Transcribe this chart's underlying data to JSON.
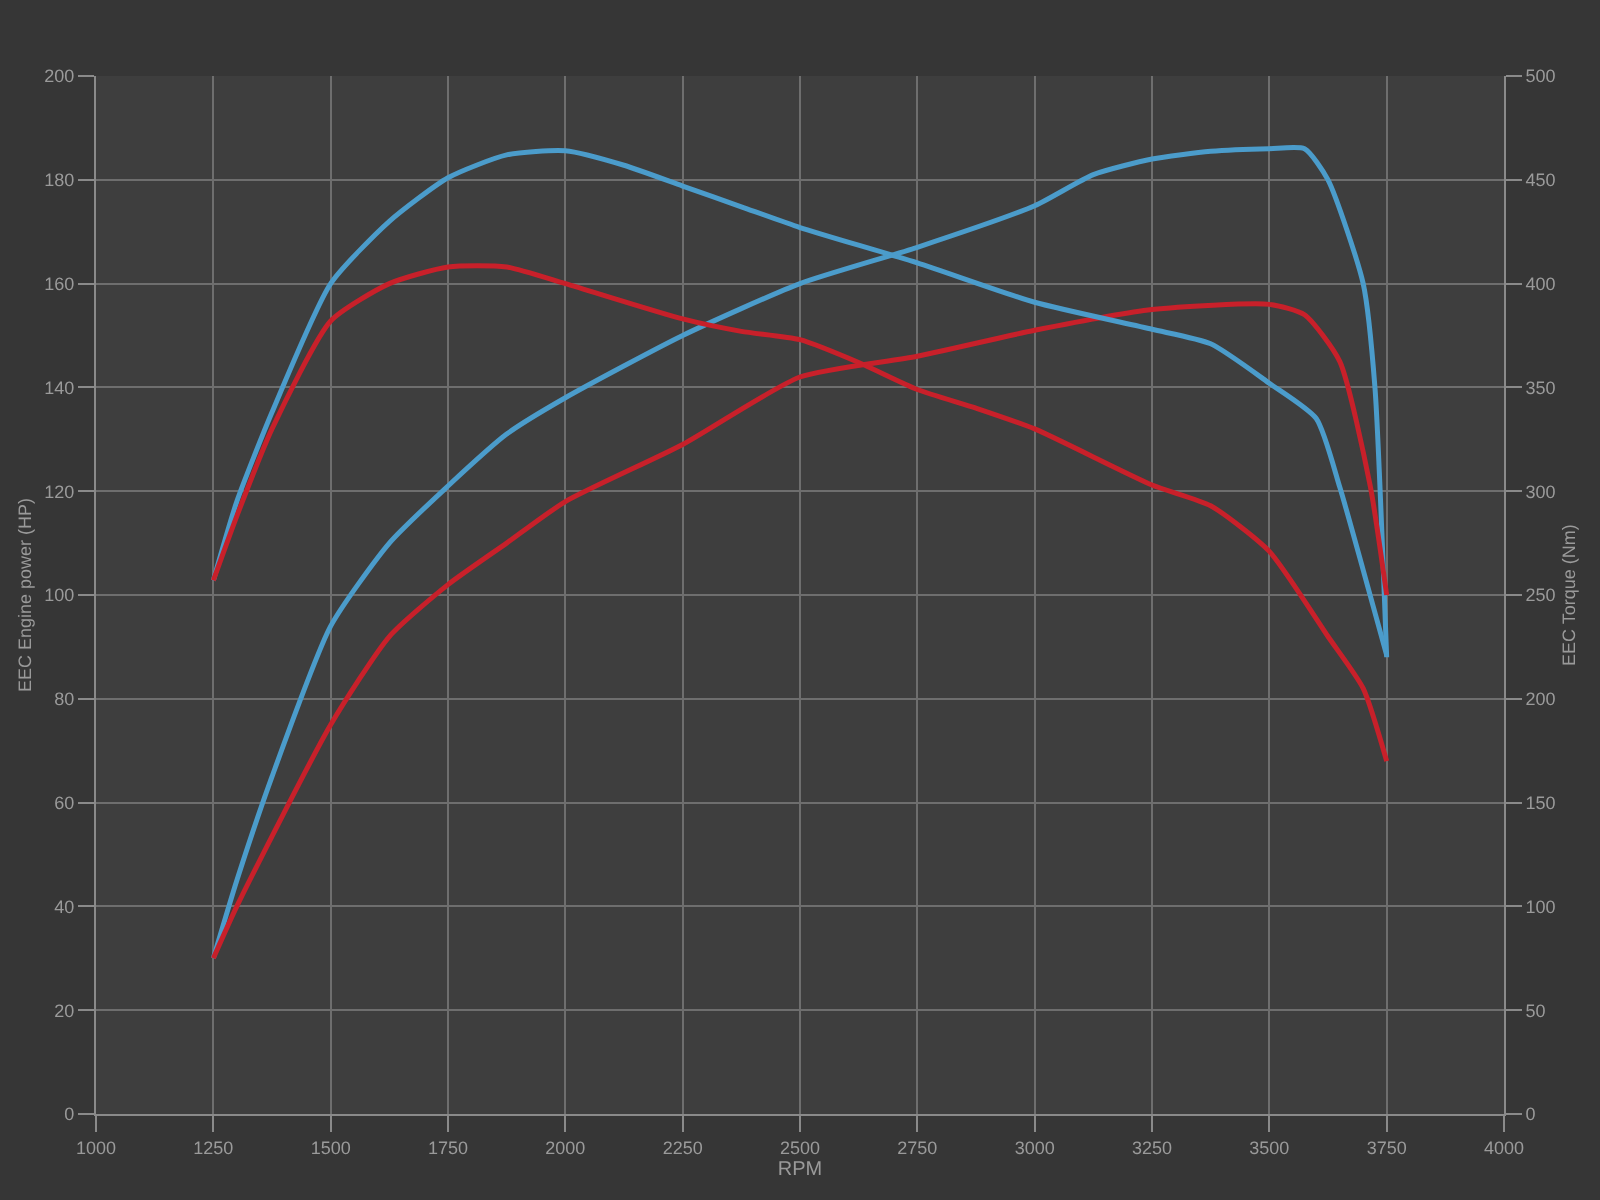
{
  "chart_data": {
    "type": "line",
    "xlabel": "RPM",
    "ylabel": "EEC Engine power (HP)",
    "y2label": "EEC Torque (Nm)",
    "xlim": [
      1000,
      4000
    ],
    "xticks": [
      1000,
      1250,
      1500,
      1750,
      2000,
      2250,
      2500,
      2750,
      3000,
      3250,
      3500,
      3750,
      4000
    ],
    "ylim": [
      0,
      200
    ],
    "yticks": [
      0,
      20,
      40,
      60,
      80,
      100,
      120,
      140,
      160,
      180,
      200
    ],
    "y2lim": [
      0,
      500
    ],
    "y2ticks": [
      0,
      50,
      100,
      150,
      200,
      250,
      300,
      350,
      400,
      450,
      500
    ],
    "grid": true,
    "marker": "none",
    "line_style": "solid",
    "series": [
      {
        "color": "#4b9ccb",
        "x": [
          1250,
          1300,
          1375,
          1500,
          1625,
          1750,
          1875,
          2000,
          2250,
          2500,
          2750,
          3000,
          3125,
          3250,
          3375,
          3500,
          3575,
          3625,
          3700,
          3725,
          3750
        ],
        "values": [
          30,
          45,
          65,
          94,
          110,
          121,
          131,
          138,
          150,
          160,
          167,
          175,
          181,
          184,
          185.5,
          186,
          186,
          180,
          160,
          140,
          88
        ]
      },
      {
        "color": "#c8202a",
        "x": [
          1250,
          1300,
          1500,
          1625,
          1750,
          1875,
          2000,
          2250,
          2500,
          2750,
          3000,
          3250,
          3500,
          3575,
          3650,
          3715,
          3750
        ],
        "values": [
          30,
          40,
          75,
          92,
          102,
          110,
          118,
          129,
          142,
          146,
          151,
          155,
          156,
          154,
          145,
          121,
          100
        ]
      },
      {
        "color": "#4b9ccb",
        "axis": "y2",
        "x": [
          1250,
          1300,
          1375,
          1500,
          1625,
          1750,
          1875,
          2000,
          2125,
          2250,
          2375,
          2500,
          2750,
          3000,
          3250,
          3375,
          3500,
          3600,
          3650,
          3700,
          3750
        ],
        "values": [
          257,
          295,
          338,
          400,
          430,
          451,
          462,
          464,
          457,
          447,
          437,
          427,
          410,
          391,
          378,
          371,
          352,
          335,
          302,
          262,
          221
        ]
      },
      {
        "color": "#c8202a",
        "axis": "y2",
        "x": [
          1250,
          1300,
          1375,
          1500,
          1625,
          1750,
          1875,
          2000,
          2250,
          2375,
          2500,
          2625,
          2750,
          2875,
          3000,
          3250,
          3375,
          3500,
          3625,
          3700,
          3750
        ],
        "values": [
          257,
          288,
          330,
          382,
          400,
          408,
          408,
          400,
          383,
          377,
          373,
          362,
          349,
          340,
          330,
          303,
          293,
          271,
          230,
          205,
          170
        ]
      }
    ]
  }
}
